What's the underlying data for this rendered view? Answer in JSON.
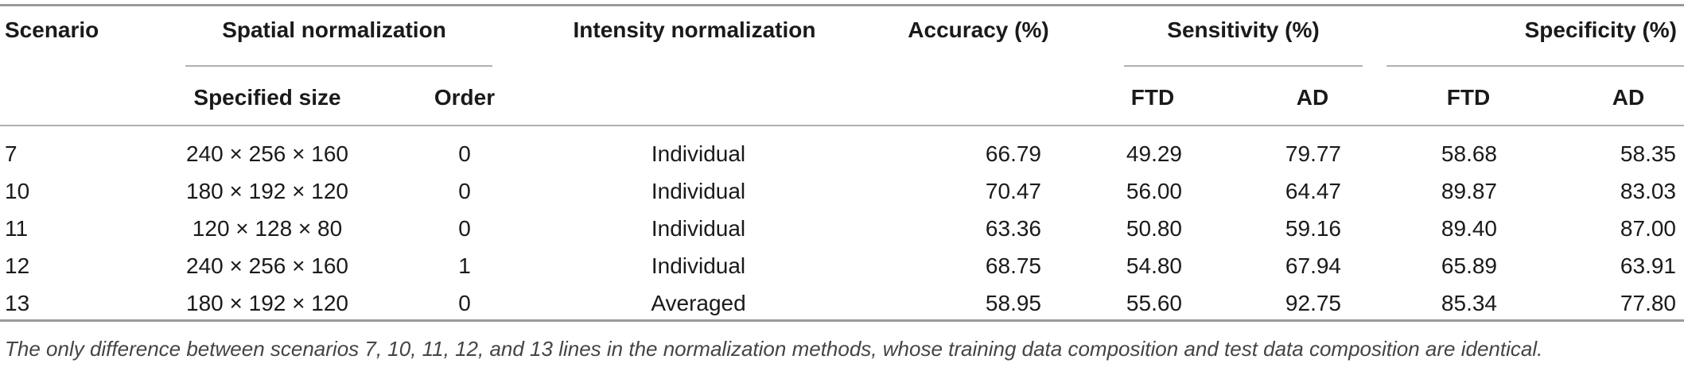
{
  "table": {
    "headers": {
      "scenario": "Scenario",
      "spatial": "Spatial normalization",
      "intensity": "Intensity normalization",
      "accuracy": "Accuracy (%)",
      "sensitivity": "Sensitivity (%)",
      "specificity": "Specificity (%)"
    },
    "subheaders": {
      "specified_size": "Specified size",
      "order": "Order",
      "sens_ftd": "FTD",
      "sens_ad": "AD",
      "spec_ftd": "FTD",
      "spec_ad": "AD"
    },
    "rows": [
      {
        "scenario": "7",
        "size": "240 × 256 × 160",
        "order": "0",
        "intensity": "Individual",
        "accuracy": "66.79",
        "sens_ftd": "49.29",
        "sens_ad": "79.77",
        "spec_ftd": "58.68",
        "spec_ad": "58.35"
      },
      {
        "scenario": "10",
        "size": "180 × 192 × 120",
        "order": "0",
        "intensity": "Individual",
        "accuracy": "70.47",
        "sens_ftd": "56.00",
        "sens_ad": "64.47",
        "spec_ftd": "89.87",
        "spec_ad": "83.03"
      },
      {
        "scenario": "11",
        "size": "120 × 128 × 80",
        "order": "0",
        "intensity": "Individual",
        "accuracy": "63.36",
        "sens_ftd": "50.80",
        "sens_ad": "59.16",
        "spec_ftd": "89.40",
        "spec_ad": "87.00"
      },
      {
        "scenario": "12",
        "size": "240 × 256 × 160",
        "order": "1",
        "intensity": "Individual",
        "accuracy": "68.75",
        "sens_ftd": "54.80",
        "sens_ad": "67.94",
        "spec_ftd": "65.89",
        "spec_ad": "63.91"
      },
      {
        "scenario": "13",
        "size": "180 × 192 × 120",
        "order": "0",
        "intensity": "Averaged",
        "accuracy": "58.95",
        "sens_ftd": "55.60",
        "sens_ad": "92.75",
        "spec_ftd": "85.34",
        "spec_ad": "77.80"
      }
    ]
  },
  "caption": "The only difference between scenarios 7, 10, 11, 12, and 13 lines in the normalization methods, whose training data composition and test data composition are identical."
}
